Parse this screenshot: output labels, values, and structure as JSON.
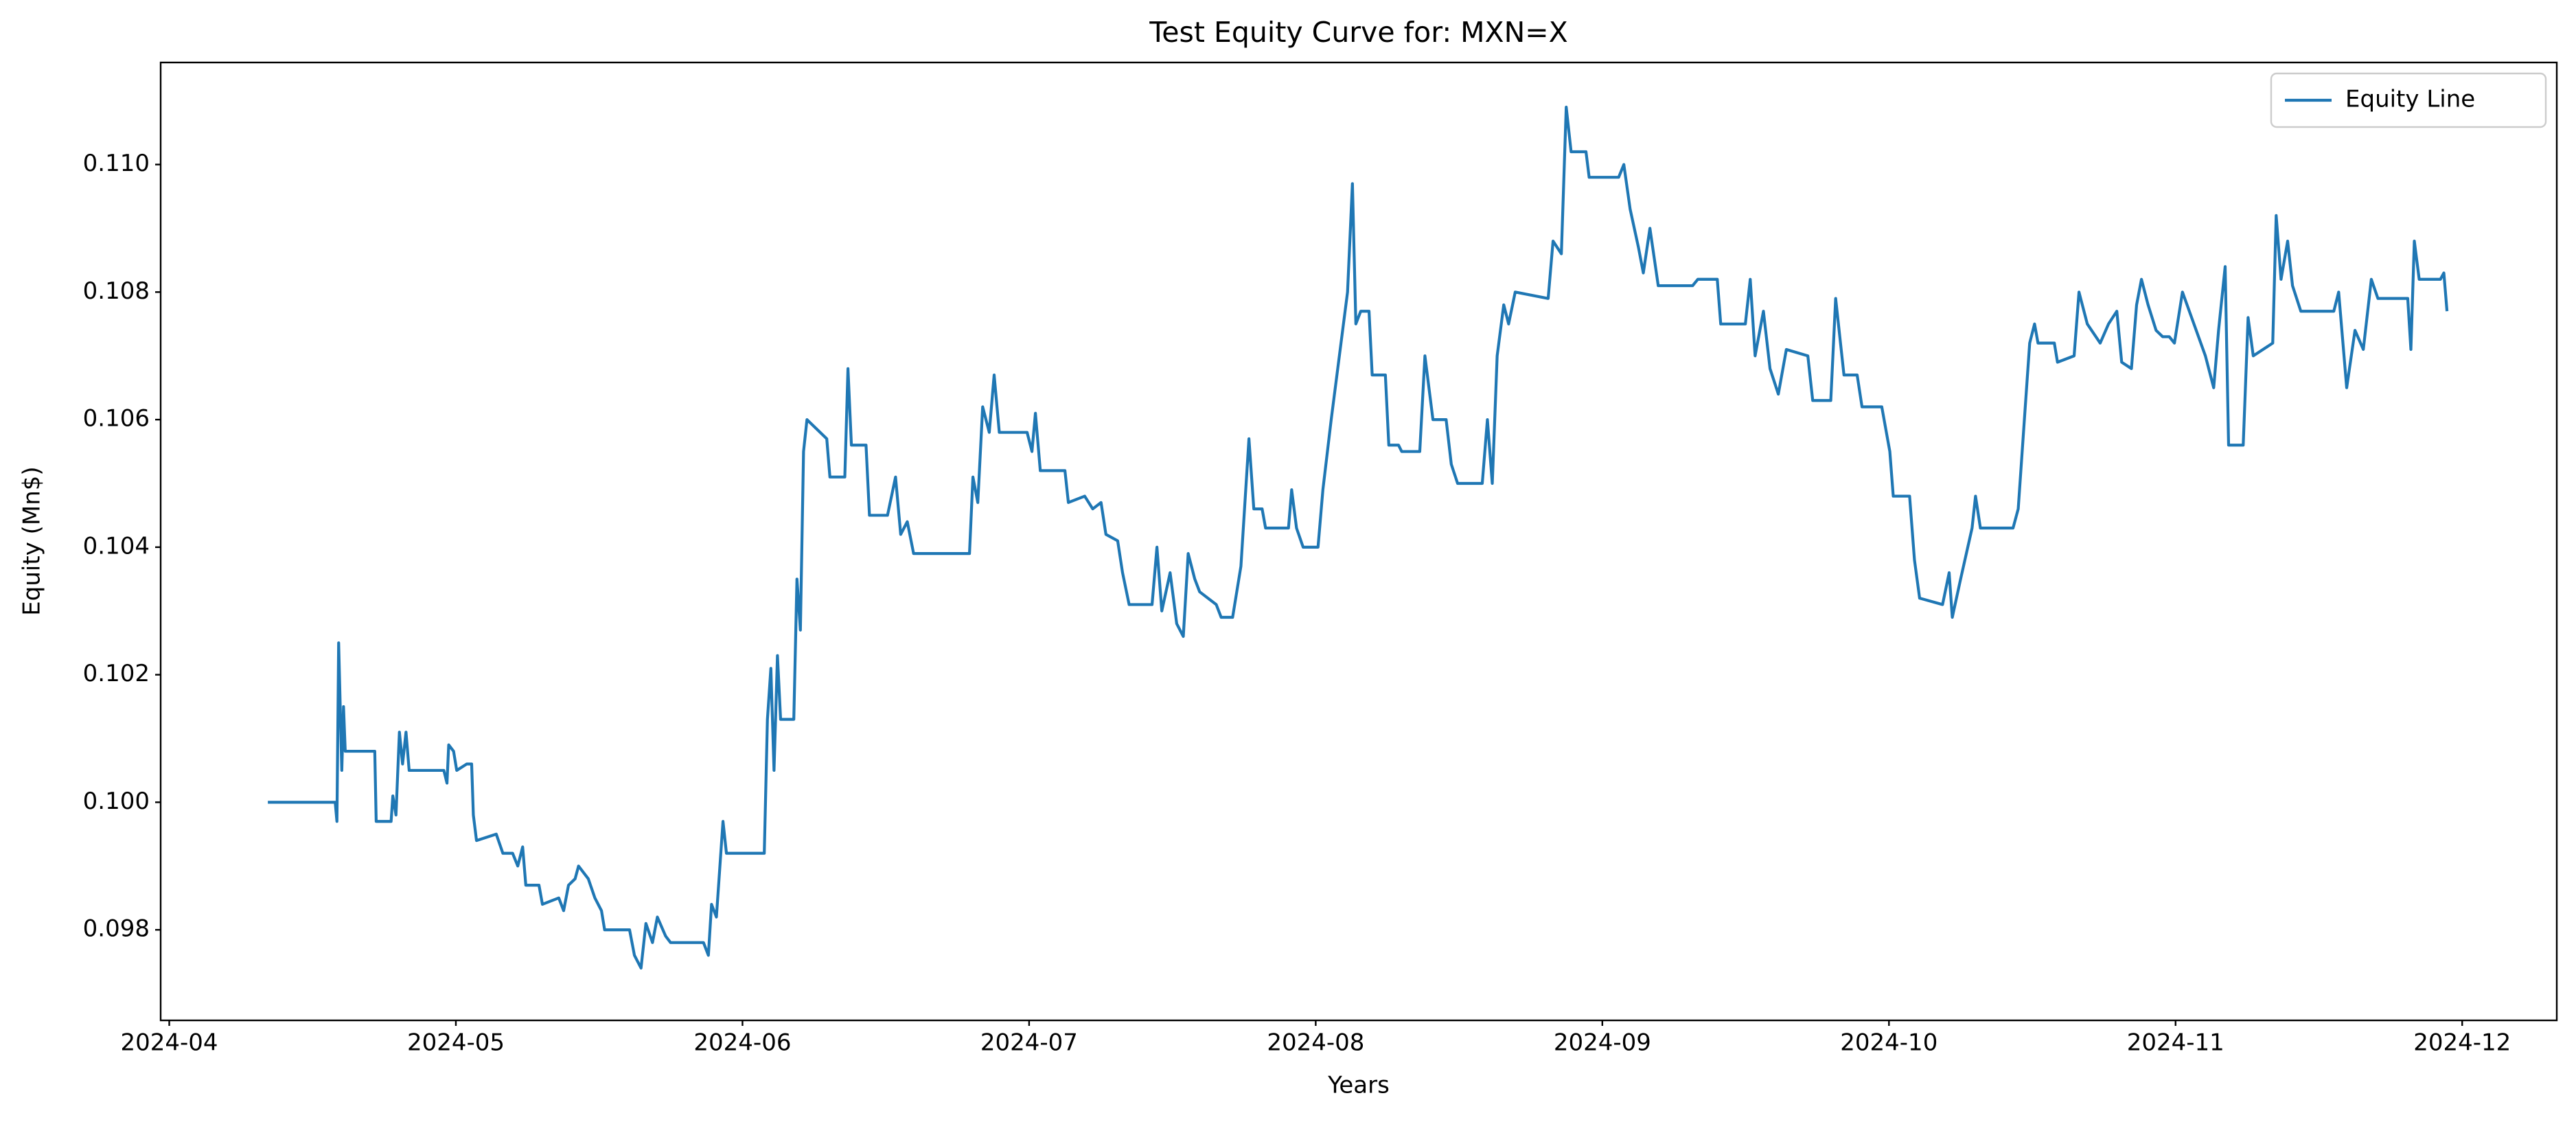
{
  "chart_data": {
    "type": "line",
    "title": "Test Equity Curve for: MXN=X",
    "x_label": "Years",
    "y_label": "Equity (Mn$)",
    "x": [
      4.344,
      4.579,
      4.585,
      4.591,
      4.602,
      4.608,
      4.614,
      4.717,
      4.722,
      4.774,
      4.78,
      4.791,
      4.803,
      4.814,
      4.826,
      4.837,
      4.958,
      4.969,
      4.975,
      4.992,
      5.003,
      5.038,
      5.055,
      5.061,
      5.072,
      5.141,
      5.164,
      5.198,
      5.216,
      5.233,
      5.244,
      5.29,
      5.302,
      5.359,
      5.376,
      5.393,
      5.416,
      5.428,
      5.462,
      5.485,
      5.508,
      5.519,
      5.606,
      5.623,
      5.646,
      5.663,
      5.686,
      5.703,
      5.732,
      5.749,
      5.864,
      5.881,
      5.892,
      5.909,
      5.932,
      5.944,
      6.076,
      6.087,
      6.099,
      6.11,
      6.122,
      6.133,
      6.179,
      6.19,
      6.202,
      6.213,
      6.225,
      6.294,
      6.305,
      6.357,
      6.368,
      6.38,
      6.431,
      6.443,
      6.506,
      6.534,
      6.552,
      6.575,
      6.597,
      6.792,
      6.804,
      6.821,
      6.838,
      6.861,
      6.878,
      6.896,
      6.993,
      7.01,
      7.022,
      7.039,
      7.125,
      7.137,
      7.194,
      7.222,
      7.251,
      7.268,
      7.309,
      7.326,
      7.349,
      7.429,
      7.446,
      7.463,
      7.492,
      7.515,
      7.538,
      7.555,
      7.578,
      7.595,
      7.653,
      7.67,
      7.71,
      7.739,
      7.767,
      7.784,
      7.813,
      7.825,
      7.905,
      7.916,
      7.933,
      7.956,
      8.008,
      8.025,
      8.054,
      8.111,
      8.128,
      8.14,
      8.157,
      8.186,
      8.197,
      8.243,
      8.255,
      8.289,
      8.3,
      8.363,
      8.381,
      8.409,
      8.455,
      8.473,
      8.495,
      8.581,
      8.599,
      8.616,
      8.633,
      8.656,
      8.673,
      8.696,
      8.811,
      8.828,
      8.857,
      8.874,
      8.891,
      8.943,
      8.954,
      9.057,
      9.075,
      9.097,
      9.126,
      9.143,
      9.166,
      9.195,
      9.315,
      9.333,
      9.401,
      9.413,
      9.499,
      9.516,
      9.533,
      9.562,
      9.585,
      9.614,
      9.642,
      9.717,
      9.734,
      9.797,
      9.814,
      9.843,
      9.889,
      9.906,
      9.975,
      10.003,
      10.015,
      10.072,
      10.089,
      10.107,
      10.187,
      10.21,
      10.221,
      10.25,
      10.29,
      10.302,
      10.319,
      10.433,
      10.451,
      10.474,
      10.491,
      10.508,
      10.52,
      10.577,
      10.588,
      10.646,
      10.663,
      10.692,
      10.737,
      10.766,
      10.795,
      10.812,
      10.846,
      10.864,
      10.881,
      10.904,
      10.932,
      10.955,
      10.978,
      10.996,
      11.024,
      11.104,
      11.133,
      11.15,
      11.173,
      11.185,
      11.236,
      11.253,
      11.271,
      11.339,
      11.351,
      11.368,
      11.391,
      11.408,
      11.437,
      11.552,
      11.569,
      11.597,
      11.626,
      11.655,
      11.683,
      11.706,
      11.81,
      11.821,
      11.833,
      11.85,
      11.924,
      11.936,
      11.947
    ],
    "series": [
      {
        "name": "Equity Line",
        "color": "#1f77b4",
        "values": [
          0.1,
          0.1,
          0.0997,
          0.1025,
          0.1005,
          0.1015,
          0.1008,
          0.1008,
          0.0997,
          0.0997,
          0.1001,
          0.0998,
          0.1011,
          0.1006,
          0.1011,
          0.1005,
          0.1005,
          0.1003,
          0.1009,
          0.1008,
          0.1005,
          0.1006,
          0.1006,
          0.0998,
          0.0994,
          0.0995,
          0.0992,
          0.0992,
          0.099,
          0.0993,
          0.0987,
          0.0987,
          0.0984,
          0.0985,
          0.0983,
          0.0987,
          0.0988,
          0.099,
          0.0988,
          0.0985,
          0.0983,
          0.098,
          0.098,
          0.0976,
          0.0974,
          0.0981,
          0.0978,
          0.0982,
          0.0979,
          0.0978,
          0.0978,
          0.0976,
          0.0984,
          0.0982,
          0.0997,
          0.0992,
          0.0992,
          0.1013,
          0.1021,
          0.1005,
          0.1023,
          0.1013,
          0.1013,
          0.1035,
          0.1027,
          0.1055,
          0.106,
          0.1057,
          0.1051,
          0.1051,
          0.1068,
          0.1056,
          0.1056,
          0.1045,
          0.1045,
          0.1051,
          0.1042,
          0.1044,
          0.1039,
          0.1039,
          0.1051,
          0.1047,
          0.1062,
          0.1058,
          0.1067,
          0.1058,
          0.1058,
          0.1055,
          0.1061,
          0.1052,
          0.1052,
          0.1047,
          0.1048,
          0.1046,
          0.1047,
          0.1042,
          0.1041,
          0.1036,
          0.1031,
          0.1031,
          0.104,
          0.103,
          0.1036,
          0.1028,
          0.1026,
          0.1039,
          0.1035,
          0.1033,
          0.1031,
          0.1029,
          0.1029,
          0.1037,
          0.1057,
          0.1046,
          0.1046,
          0.1043,
          0.1043,
          0.1049,
          0.1043,
          0.104,
          0.104,
          0.1049,
          0.106,
          0.108,
          0.1097,
          0.1075,
          0.1077,
          0.1077,
          0.1067,
          0.1067,
          0.1056,
          0.1056,
          0.1055,
          0.1055,
          0.107,
          0.106,
          0.106,
          0.1053,
          0.105,
          0.105,
          0.106,
          0.105,
          0.107,
          0.1078,
          0.1075,
          0.108,
          0.1079,
          0.1088,
          0.1086,
          0.1109,
          0.1102,
          0.1102,
          0.1098,
          0.1098,
          0.11,
          0.1093,
          0.1087,
          0.1083,
          0.109,
          0.1081,
          0.1081,
          0.1082,
          0.1082,
          0.1075,
          0.1075,
          0.1082,
          0.107,
          0.1077,
          0.1068,
          0.1064,
          0.1071,
          0.107,
          0.1063,
          0.1063,
          0.1079,
          0.1067,
          0.1067,
          0.1062,
          0.1062,
          0.1055,
          0.1048,
          0.1048,
          0.1038,
          0.1032,
          0.1031,
          0.1036,
          0.1029,
          0.1035,
          0.1043,
          0.1048,
          0.1043,
          0.1043,
          0.1046,
          0.1061,
          0.1072,
          0.1075,
          0.1072,
          0.1072,
          0.1069,
          0.107,
          0.108,
          0.1075,
          0.1072,
          0.1075,
          0.1077,
          0.1069,
          0.1068,
          0.1078,
          0.1082,
          0.1078,
          0.1074,
          0.1073,
          0.1073,
          0.1072,
          0.108,
          0.107,
          0.1065,
          0.1074,
          0.1084,
          0.1056,
          0.1056,
          0.1076,
          0.107,
          0.1072,
          0.1092,
          0.1082,
          0.1088,
          0.1081,
          0.1077,
          0.1077,
          0.108,
          0.1065,
          0.1074,
          0.1071,
          0.1082,
          0.1079,
          0.1079,
          0.1071,
          0.1088,
          0.1082,
          0.1082,
          0.1083,
          0.1077
        ]
      }
    ],
    "xlim": [
      3.97,
      12.33
    ],
    "ylim": [
      0.09658,
      0.1116
    ],
    "xticks": [
      {
        "value": 4,
        "label": "2024-04"
      },
      {
        "value": 5,
        "label": "2024-05"
      },
      {
        "value": 6,
        "label": "2024-06"
      },
      {
        "value": 7,
        "label": "2024-07"
      },
      {
        "value": 8,
        "label": "2024-08"
      },
      {
        "value": 9,
        "label": "2024-09"
      },
      {
        "value": 10,
        "label": "2024-10"
      },
      {
        "value": 11,
        "label": "2024-11"
      },
      {
        "value": 12,
        "label": "2024-12"
      }
    ],
    "yticks": [
      0.098,
      {
        "value": 0.1,
        "label": "0.100"
      },
      0.102,
      0.104,
      0.106,
      0.108,
      {
        "value": 0.11,
        "label": "0.110"
      }
    ],
    "grid": false,
    "legend": "upper right"
  }
}
